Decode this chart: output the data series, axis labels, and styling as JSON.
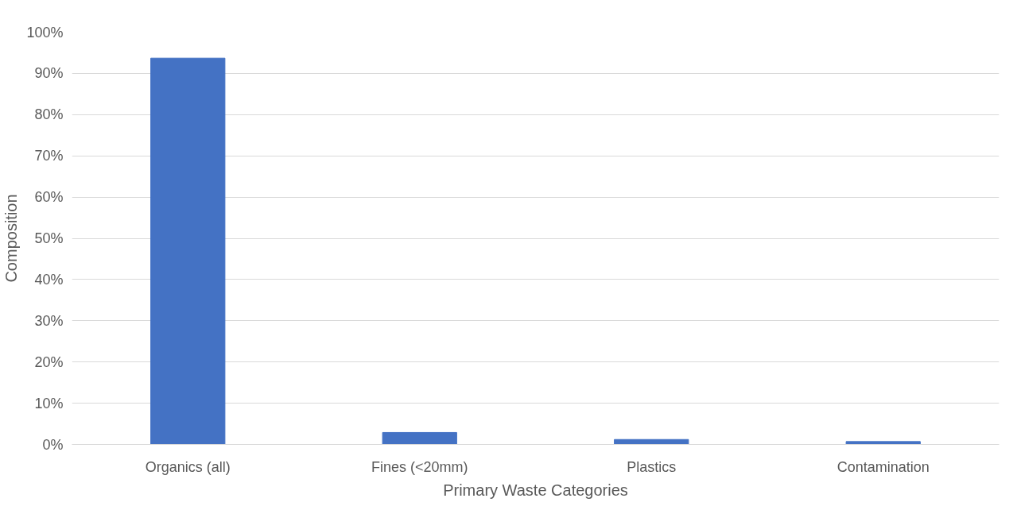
{
  "chart_data": {
    "type": "bar",
    "xlabel": "Primary Waste Categories",
    "ylabel": "Composition",
    "categories": [
      "Organics (all)",
      "Fines (<20mm)",
      "Plastics",
      "Contamination"
    ],
    "values": [
      93.7,
      2.9,
      1.2,
      0.7
    ],
    "color": "#4472c4",
    "ylim": [
      0,
      100
    ],
    "yticks": [
      {
        "value": 0,
        "label": "0%"
      },
      {
        "value": 10,
        "label": "10%"
      },
      {
        "value": 20,
        "label": "20%"
      },
      {
        "value": 30,
        "label": "30%"
      },
      {
        "value": 40,
        "label": "40%"
      },
      {
        "value": 50,
        "label": "50%"
      },
      {
        "value": 60,
        "label": "60%"
      },
      {
        "value": 70,
        "label": "70%"
      },
      {
        "value": 80,
        "label": "80%"
      },
      {
        "value": 90,
        "label": "90%"
      },
      {
        "value": 100,
        "label": "100%"
      }
    ],
    "grid": "y"
  }
}
